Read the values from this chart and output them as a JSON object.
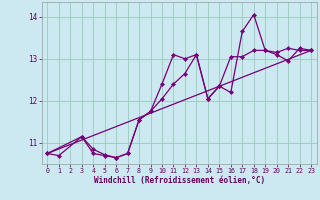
{
  "background_color": "#cce8f0",
  "line_color": "#770077",
  "grid_color": "#99ccbb",
  "xlabel": "Windchill (Refroidissement éolien,°C)",
  "xlim": [
    -0.5,
    23.5
  ],
  "ylim": [
    10.5,
    14.35
  ],
  "yticks": [
    11,
    12,
    13,
    14
  ],
  "xticks": [
    0,
    1,
    2,
    3,
    4,
    5,
    6,
    7,
    8,
    9,
    10,
    11,
    12,
    13,
    14,
    15,
    16,
    17,
    18,
    19,
    20,
    21,
    22,
    23
  ],
  "line1_x": [
    0,
    1,
    3,
    4,
    5,
    6,
    7,
    8,
    9,
    10,
    11,
    12,
    13,
    14,
    15,
    16,
    17,
    18,
    19,
    20,
    21,
    22,
    23
  ],
  "line1_y": [
    10.75,
    10.7,
    11.15,
    10.75,
    10.7,
    10.65,
    10.75,
    11.55,
    11.75,
    12.05,
    12.4,
    12.65,
    13.1,
    12.05,
    12.35,
    12.2,
    13.65,
    14.05,
    13.2,
    13.1,
    12.95,
    13.25,
    13.2
  ],
  "line2_x": [
    0,
    3,
    4,
    5,
    6,
    7,
    8,
    9,
    10,
    11,
    12,
    13,
    14,
    15,
    16,
    17,
    18,
    19,
    20,
    21,
    22,
    23
  ],
  "line2_y": [
    10.75,
    11.15,
    10.85,
    10.72,
    10.65,
    10.75,
    11.55,
    11.75,
    12.4,
    13.1,
    13.0,
    13.1,
    12.05,
    12.35,
    13.05,
    13.05,
    13.2,
    13.2,
    13.15,
    13.25,
    13.2,
    13.2
  ],
  "line3_x": [
    0,
    23
  ],
  "line3_y": [
    10.75,
    13.2
  ]
}
